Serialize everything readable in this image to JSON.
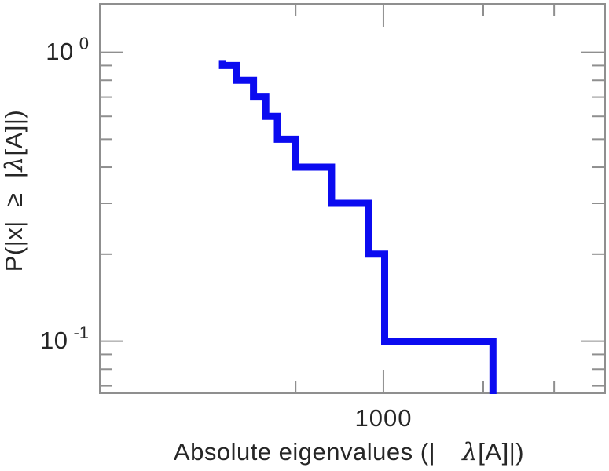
{
  "chart_data": {
    "type": "line",
    "subtype": "step-ccdf",
    "title": "",
    "xlabel": "Absolute eigenvalues (|λ[A]|)",
    "ylabel": "P(|x| ≥ |λ[A]|)",
    "x_scale": "log",
    "y_scale": "log",
    "xlim": [
      316,
      2460
    ],
    "ylim": [
      0.066,
      1.47
    ],
    "eigenvalues": [
      520,
      550,
      590,
      620,
      650,
      700,
      810,
      940,
      1005,
      1560
    ],
    "ccdf_levels": [
      0.9,
      0.8,
      0.7,
      0.6,
      0.5,
      0.4,
      0.3,
      0.2,
      0.1
    ],
    "x_major_ticks": [
      1000
    ],
    "x_minor_ticks": [
      700,
      1500,
      2000
    ],
    "y_major_ticks": [
      1,
      0.1
    ],
    "y_minor_ticks": [
      0.9,
      0.8,
      0.7,
      0.6,
      0.5,
      0.4,
      0.3,
      0.2,
      0.09,
      0.08,
      0.07
    ],
    "line_color": "#0b0bf0",
    "axis_color": "#8f8f8f",
    "grid": "off",
    "legend": "none"
  },
  "axes": {
    "y_tick_labels": [
      {
        "base": "10",
        "exp": "0"
      },
      {
        "base": "10",
        "exp": "-1"
      }
    ],
    "x_tick_labels": [
      "1000"
    ],
    "x_title": {
      "part1": "Absolute eigenvalues (|",
      "lambda": "λ",
      "part2": "[A]|)"
    },
    "y_title": {
      "part1": "P(|x|  ≥  |",
      "lambda": "λ",
      "part2": "[A]|)"
    }
  }
}
